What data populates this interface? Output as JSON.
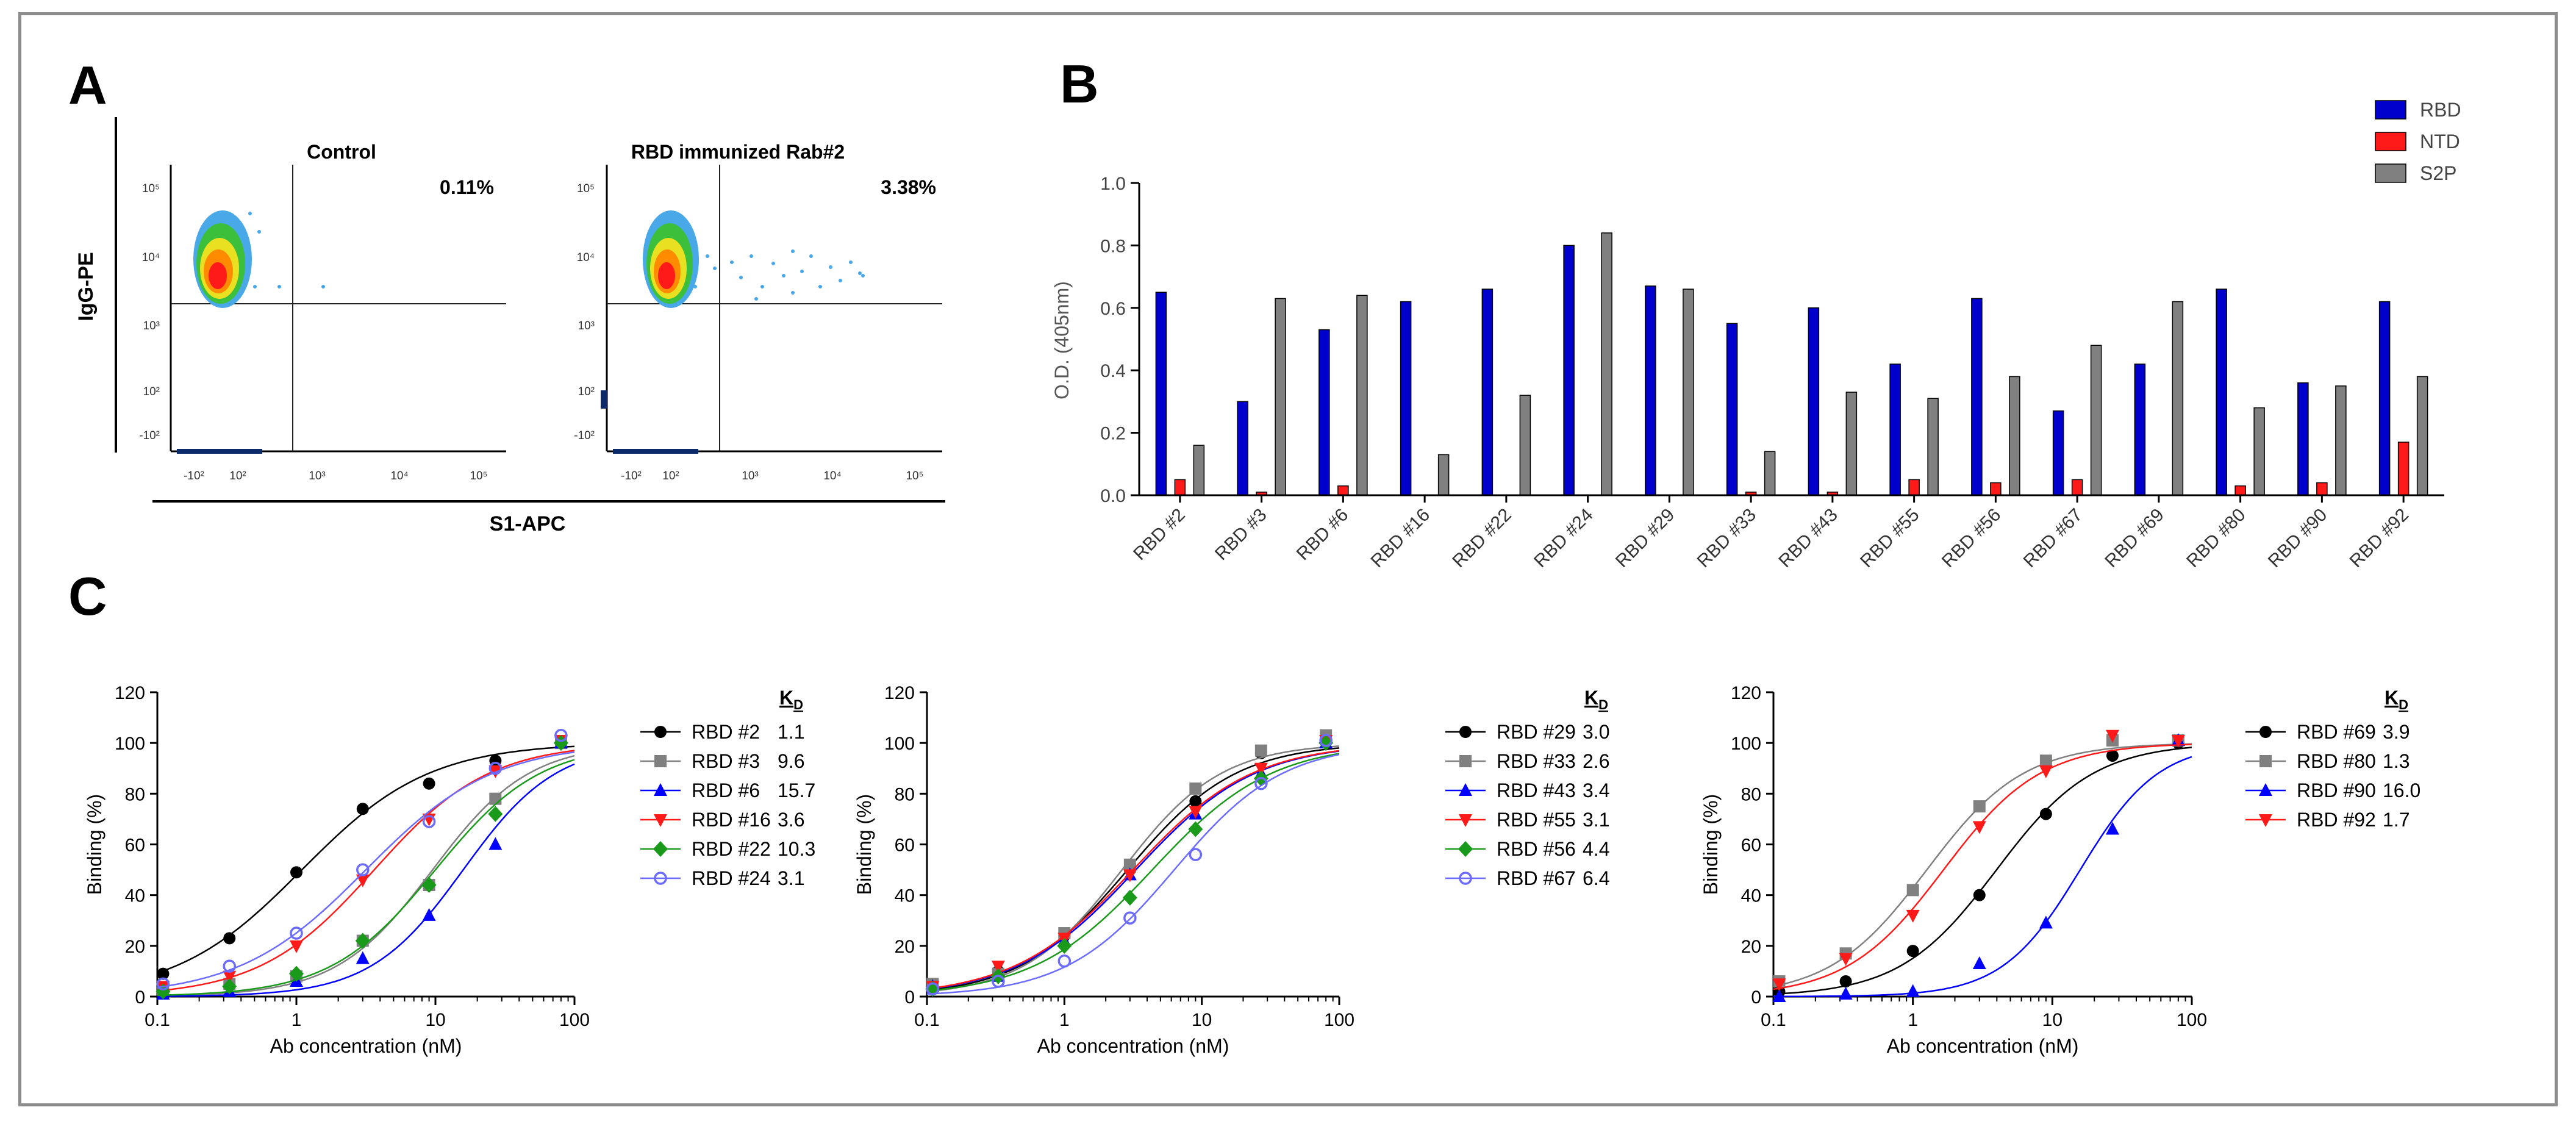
{
  "panel_labels": {
    "a": "A",
    "b": "B",
    "c": "C"
  },
  "colors": {
    "blue": "#0000cc",
    "red": "#ff1a1a",
    "gray": "#808080",
    "black": "#000000",
    "green": "#1a9a1a",
    "violet": "#6b6bff",
    "frame": "#8c8c8c"
  },
  "panel_a": {
    "plots": [
      {
        "title": "Control",
        "percent": "0.11%"
      },
      {
        "title": "RBD immunized Rab#2",
        "percent": "3.38%"
      }
    ],
    "ylabel": "IgG-PE",
    "xlabel": "S1-APC",
    "y_ticks": [
      "10⁵",
      "10⁴",
      "10³",
      "10²",
      "-10²"
    ],
    "x_ticks": [
      "-10²",
      "10²",
      "10³",
      "10⁴",
      "10⁵"
    ]
  },
  "chart_data": [
    {
      "id": "panel-b",
      "type": "bar",
      "title": "",
      "xlabel": "",
      "ylabel": "O.D. (405nm)",
      "ylim": [
        0,
        1.0
      ],
      "yticks": [
        "0.0",
        "0.2",
        "0.4",
        "0.6",
        "0.8",
        "1.0"
      ],
      "legend_position": "top-right",
      "categories": [
        "RBD #2",
        "RBD #3",
        "RBD #6",
        "RBD #16",
        "RBD #22",
        "RBD #24",
        "RBD #29",
        "RBD #33",
        "RBD #43",
        "RBD #55",
        "RBD #56",
        "RBD #67",
        "RBD #69",
        "RBD #80",
        "RBD #90",
        "RBD #92"
      ],
      "series": [
        {
          "name": "RBD",
          "color": "#0000cc",
          "values": [
            0.65,
            0.3,
            0.53,
            0.62,
            0.66,
            0.8,
            0.67,
            0.55,
            0.6,
            0.42,
            0.63,
            0.27,
            0.42,
            0.66,
            0.36,
            0.62
          ]
        },
        {
          "name": "NTD",
          "color": "#ff1a1a",
          "values": [
            0.05,
            0.01,
            0.03,
            0.0,
            0.0,
            0.0,
            0.0,
            0.01,
            0.01,
            0.05,
            0.04,
            0.05,
            0.0,
            0.03,
            0.04,
            0.17
          ]
        },
        {
          "name": "S2P",
          "color": "#808080",
          "values": [
            0.16,
            0.63,
            0.64,
            0.13,
            0.32,
            0.84,
            0.66,
            0.14,
            0.33,
            0.31,
            0.38,
            0.48,
            0.62,
            0.28,
            0.35,
            0.38
          ]
        }
      ]
    },
    {
      "id": "panel-c1",
      "type": "scatter",
      "xscale": "log",
      "xlabel": "Ab concentration (nM)",
      "ylabel": "Binding (%)",
      "xlim": [
        0.1,
        100
      ],
      "ylim": [
        0,
        120
      ],
      "xticks": [
        "0.1",
        "1",
        "10",
        "100"
      ],
      "yticks": [
        "0",
        "20",
        "40",
        "60",
        "80",
        "100",
        "120"
      ],
      "kd_header": "K",
      "kd_sub": "D",
      "x": [
        0.11,
        0.33,
        1,
        3,
        9,
        27,
        80
      ],
      "series": [
        {
          "name": "RBD #2",
          "kd": "1.1",
          "color": "#000000",
          "marker": "circle",
          "values": [
            9,
            23,
            49,
            74,
            84,
            93,
            100
          ]
        },
        {
          "name": "RBD #3",
          "kd": "9.6",
          "color": "#808080",
          "marker": "square",
          "values": [
            3,
            5,
            8,
            22,
            44,
            78,
            100
          ]
        },
        {
          "name": "RBD #6",
          "kd": "15.7",
          "color": "#0000ff",
          "marker": "triangle",
          "values": [
            1,
            2,
            6,
            15,
            32,
            60,
            100
          ]
        },
        {
          "name": "RBD #16",
          "kd": "3.6",
          "color": "#ff1a1a",
          "marker": "tri-down",
          "values": [
            4,
            8,
            20,
            46,
            70,
            89,
            101
          ]
        },
        {
          "name": "RBD #22",
          "kd": "10.3",
          "color": "#1a9a1a",
          "marker": "diamond",
          "values": [
            2,
            4,
            9,
            22,
            44,
            72,
            100
          ]
        },
        {
          "name": "RBD #24",
          "kd": "3.1",
          "color": "#6b6bff",
          "marker": "open-circle",
          "values": [
            5,
            12,
            25,
            50,
            69,
            90,
            103
          ]
        }
      ]
    },
    {
      "id": "panel-c2",
      "type": "scatter",
      "xscale": "log",
      "xlabel": "Ab concentration (nM)",
      "ylabel": "Binding (%)",
      "xlim": [
        0.1,
        100
      ],
      "ylim": [
        0,
        120
      ],
      "xticks": [
        "0.1",
        "1",
        "10",
        "100"
      ],
      "yticks": [
        "0",
        "20",
        "40",
        "60",
        "80",
        "100",
        "120"
      ],
      "kd_header": "K",
      "kd_sub": "D",
      "x": [
        0.11,
        0.33,
        1,
        3,
        9,
        27,
        80
      ],
      "series": [
        {
          "name": "RBD #29",
          "kd": "3.0",
          "color": "#000000",
          "marker": "circle",
          "values": [
            4,
            10,
            24,
            50,
            77,
            96,
            101
          ]
        },
        {
          "name": "RBD #33",
          "kd": "2.6",
          "color": "#808080",
          "marker": "square",
          "values": [
            5,
            9,
            25,
            52,
            82,
            97,
            103
          ]
        },
        {
          "name": "RBD #43",
          "kd": "3.4",
          "color": "#0000ff",
          "marker": "triangle",
          "values": [
            4,
            8,
            22,
            48,
            72,
            88,
            100
          ]
        },
        {
          "name": "RBD #55",
          "kd": "3.1",
          "color": "#ff1a1a",
          "marker": "tri-down",
          "values": [
            4,
            12,
            23,
            48,
            73,
            90,
            101
          ]
        },
        {
          "name": "RBD #56",
          "kd": "4.4",
          "color": "#1a9a1a",
          "marker": "diamond",
          "values": [
            3,
            8,
            20,
            39,
            66,
            86,
            100
          ]
        },
        {
          "name": "RBD #67",
          "kd": "6.4",
          "color": "#6b6bff",
          "marker": "open-circle",
          "values": [
            3,
            6,
            14,
            31,
            56,
            84,
            101
          ]
        }
      ]
    },
    {
      "id": "panel-c3",
      "type": "scatter",
      "xscale": "log",
      "xlabel": "Ab concentration (nM)",
      "ylabel": "Binding (%)",
      "xlim": [
        0.1,
        100
      ],
      "ylim": [
        0,
        120
      ],
      "xticks": [
        "0.1",
        "1",
        "10",
        "100"
      ],
      "yticks": [
        "0",
        "20",
        "40",
        "60",
        "80",
        "100",
        "120"
      ],
      "kd_header": "K",
      "kd_sub": "D",
      "x": [
        0.11,
        0.33,
        1,
        3,
        9,
        27,
        80
      ],
      "series": [
        {
          "name": "RBD #69",
          "kd": "3.9",
          "color": "#000000",
          "marker": "circle",
          "values": [
            2,
            6,
            18,
            40,
            72,
            95,
            100
          ]
        },
        {
          "name": "RBD #80",
          "kd": "1.3",
          "color": "#808080",
          "marker": "square",
          "values": [
            6,
            17,
            42,
            75,
            93,
            101,
            101
          ]
        },
        {
          "name": "RBD #90",
          "kd": "16.0",
          "color": "#0000ff",
          "marker": "triangle",
          "values": [
            0,
            1,
            2,
            13,
            29,
            66,
            101
          ]
        },
        {
          "name": "RBD #92",
          "kd": "1.7",
          "color": "#ff1a1a",
          "marker": "tri-down",
          "values": [
            5,
            15,
            32,
            67,
            89,
            103,
            101
          ]
        }
      ]
    }
  ]
}
